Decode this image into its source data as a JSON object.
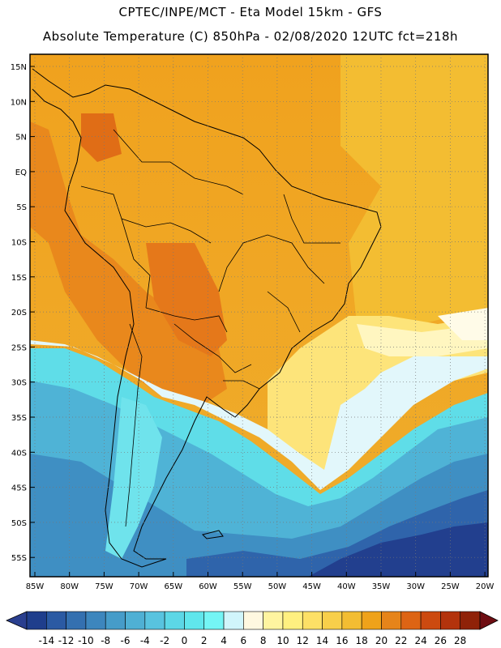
{
  "title_line1": "CPTEC/INPE/MCT -  Eta Model 15km - GFS",
  "title_line2": "Absolute Temperature (C) 850hPa - 02/08/2020 12UTC fct=218h",
  "lat_labels": [
    "15N",
    "10N",
    "5N",
    "EQ",
    "5S",
    "10S",
    "15S",
    "20S",
    "25S",
    "30S",
    "35S",
    "40S",
    "45S",
    "50S",
    "55S"
  ],
  "lon_labels": [
    "85W",
    "80W",
    "75W",
    "70W",
    "65W",
    "60W",
    "55W",
    "50W",
    "45W",
    "40W",
    "35W",
    "30W",
    "25W",
    "20W"
  ],
  "colorbar": {
    "tick_labels": [
      "-14",
      "-12",
      "-10",
      "-8",
      "-6",
      "-4",
      "-2",
      "0",
      "2",
      "4",
      "6",
      "8",
      "10",
      "12",
      "14",
      "16",
      "18",
      "20",
      "22",
      "24",
      "26",
      "28"
    ],
    "colors": [
      "#1f3e8c",
      "#2b5aa3",
      "#3470b0",
      "#3d86bd",
      "#469cc9",
      "#4fb0d4",
      "#58c3df",
      "#5cd7e6",
      "#60e6ec",
      "#74f5f5",
      "#d0f5fb",
      "#fff8e0",
      "#fff4a0",
      "#fff080",
      "#fde066",
      "#f8cf4a",
      "#f3bd32",
      "#efa21a",
      "#e6841a",
      "#dd6414",
      "#cc4a10",
      "#b3330c",
      "#8f2208"
    ],
    "under_color": "#2a3f8f",
    "over_color": "#6e0d12"
  }
}
